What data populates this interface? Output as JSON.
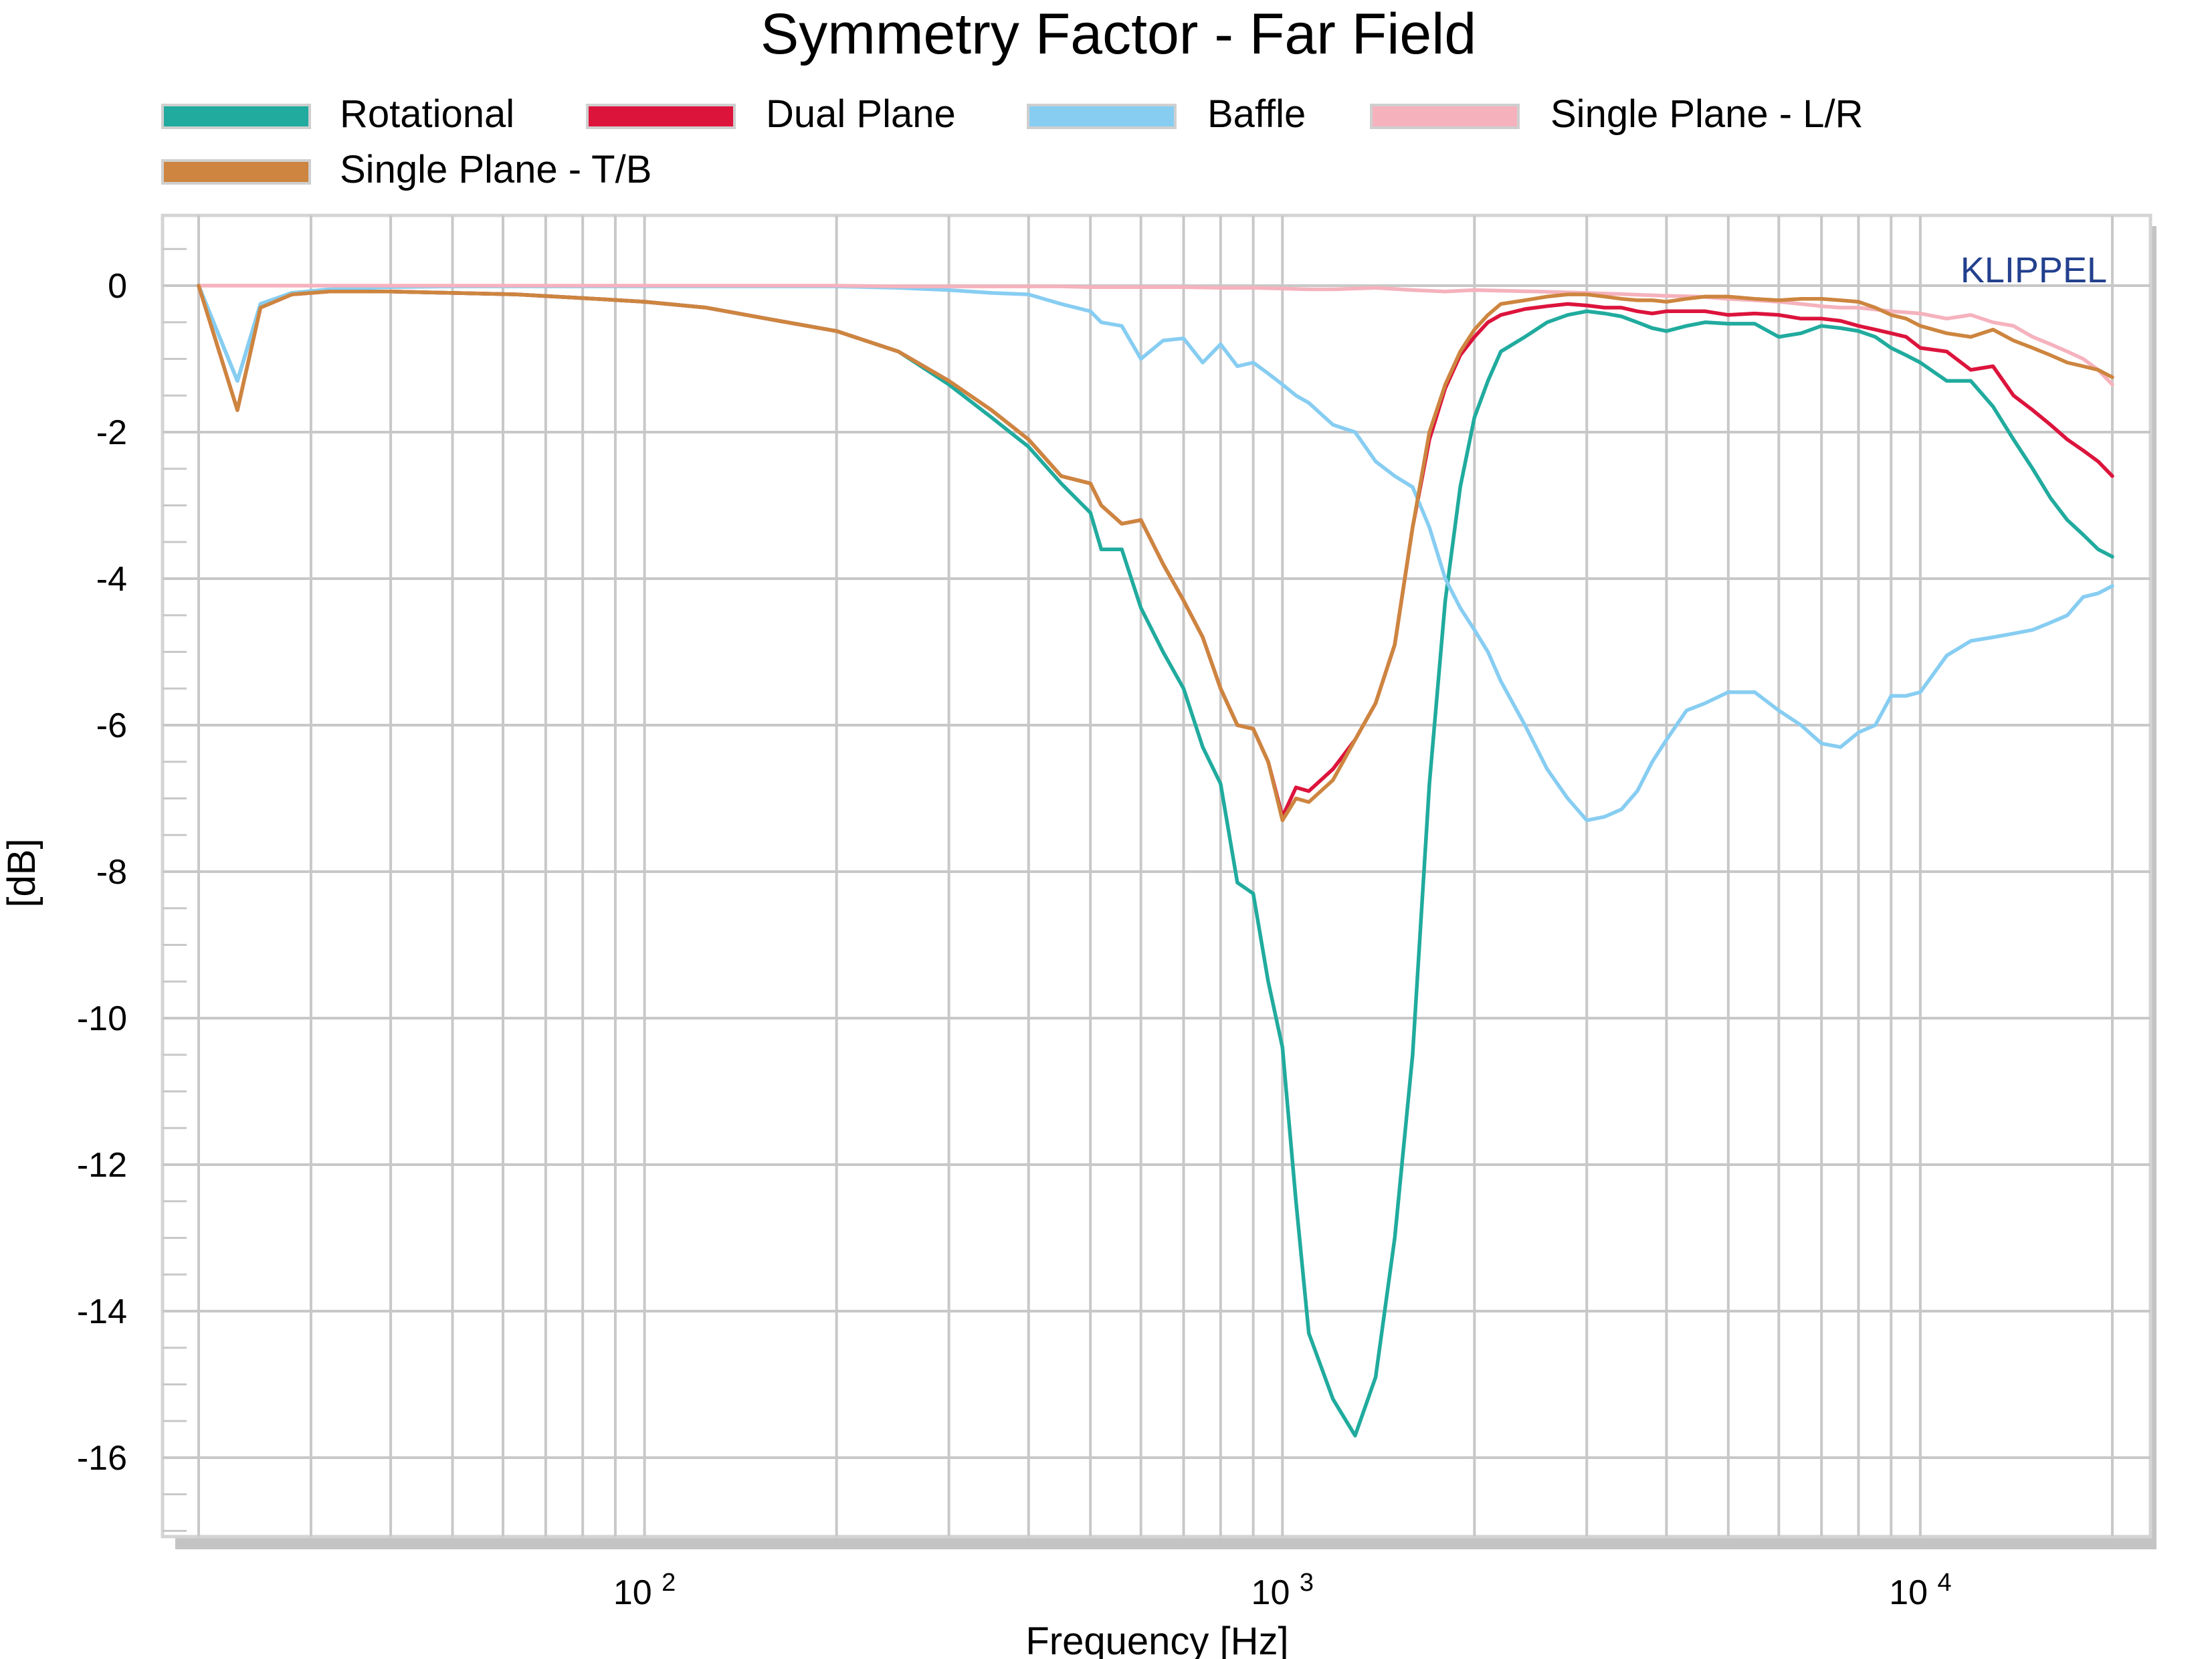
{
  "chart_data": {
    "type": "line",
    "title": "Symmetry Factor - Far Field",
    "xlabel": "Frequency [Hz]",
    "ylabel": "[dB]",
    "watermark": "KLIPPEL",
    "x_scale": "log",
    "xlim": [
      20,
      20000
    ],
    "ylim": [
      -17,
      1
    ],
    "x_ticks": [
      {
        "value": 100,
        "base": "10",
        "exp": "2"
      },
      {
        "value": 1000,
        "base": "10",
        "exp": "3"
      },
      {
        "value": 10000,
        "base": "10",
        "exp": "4"
      }
    ],
    "y_ticks": [
      0,
      -2,
      -4,
      -6,
      -8,
      -10,
      -12,
      -14,
      -16
    ],
    "y_tick_labels": [
      "0",
      "-2",
      "-4",
      "-6",
      "-8",
      "-10",
      "-12",
      "-14",
      "-16"
    ],
    "grid": true,
    "legend_position": "top",
    "series": [
      {
        "name": "Rotational",
        "color": "#20ab9e",
        "x": [
          20,
          23,
          25,
          28,
          32,
          40,
          50,
          63,
          80,
          100,
          125,
          160,
          200,
          250,
          300,
          350,
          400,
          450,
          500,
          520,
          560,
          600,
          650,
          700,
          750,
          800,
          850,
          900,
          950,
          1000,
          1050,
          1100,
          1200,
          1300,
          1400,
          1500,
          1600,
          1700,
          1800,
          1900,
          2000,
          2100,
          2200,
          2400,
          2600,
          2800,
          3000,
          3200,
          3400,
          3600,
          3800,
          4000,
          4300,
          4600,
          5000,
          5500,
          6000,
          6500,
          7000,
          7500,
          8000,
          8500,
          9000,
          9500,
          10000,
          11000,
          12000,
          13000,
          14000,
          15000,
          16000,
          17000,
          18000,
          19000,
          20000
        ],
        "y": [
          0,
          -1.3,
          -0.25,
          -0.1,
          -0.08,
          -0.08,
          -0.1,
          -0.12,
          -0.17,
          -0.22,
          -0.3,
          -0.47,
          -0.62,
          -0.9,
          -1.35,
          -1.8,
          -2.2,
          -2.7,
          -3.1,
          -3.6,
          -3.6,
          -4.4,
          -5.0,
          -5.5,
          -6.3,
          -6.8,
          -8.15,
          -8.3,
          -9.5,
          -10.4,
          -12.5,
          -14.3,
          -15.2,
          -15.7,
          -14.9,
          -13.0,
          -10.5,
          -6.8,
          -4.3,
          -2.75,
          -1.8,
          -1.3,
          -0.9,
          -0.7,
          -0.5,
          -0.4,
          -0.35,
          -0.38,
          -0.42,
          -0.5,
          -0.58,
          -0.62,
          -0.55,
          -0.5,
          -0.52,
          -0.52,
          -0.7,
          -0.65,
          -0.55,
          -0.58,
          -0.62,
          -0.7,
          -0.85,
          -0.95,
          -1.05,
          -1.3,
          -1.3,
          -1.65,
          -2.1,
          -2.5,
          -2.9,
          -3.2,
          -3.4,
          -3.6,
          -3.7
        ],
        "legend_label": "Rotational"
      },
      {
        "name": "Dual Plane",
        "color": "#dc143c",
        "x": [
          20,
          23,
          25,
          28,
          32,
          40,
          50,
          63,
          80,
          100,
          125,
          160,
          200,
          250,
          300,
          350,
          400,
          450,
          500,
          520,
          560,
          600,
          650,
          700,
          750,
          800,
          850,
          900,
          950,
          1000,
          1050,
          1100,
          1200,
          1300,
          1400,
          1500,
          1600,
          1700,
          1800,
          1900,
          2000,
          2100,
          2200,
          2400,
          2600,
          2800,
          3000,
          3200,
          3400,
          3600,
          3800,
          4000,
          4300,
          4600,
          5000,
          5500,
          6000,
          6500,
          7000,
          7500,
          8000,
          8500,
          9000,
          9500,
          10000,
          11000,
          12000,
          13000,
          14000,
          15000,
          16000,
          17000,
          18000,
          19000,
          20000
        ],
        "y": [
          0,
          -1.7,
          -0.3,
          -0.12,
          -0.08,
          -0.08,
          -0.1,
          -0.12,
          -0.17,
          -0.22,
          -0.3,
          -0.47,
          -0.62,
          -0.9,
          -1.3,
          -1.7,
          -2.1,
          -2.6,
          -2.7,
          -3.0,
          -3.25,
          -3.2,
          -3.8,
          -4.3,
          -4.8,
          -5.5,
          -6.0,
          -6.05,
          -6.5,
          -7.25,
          -6.85,
          -6.9,
          -6.6,
          -6.2,
          -5.7,
          -4.9,
          -3.3,
          -2.1,
          -1.4,
          -0.95,
          -0.7,
          -0.5,
          -0.4,
          -0.32,
          -0.28,
          -0.25,
          -0.27,
          -0.3,
          -0.3,
          -0.35,
          -0.38,
          -0.35,
          -0.35,
          -0.35,
          -0.4,
          -0.38,
          -0.4,
          -0.45,
          -0.45,
          -0.48,
          -0.55,
          -0.6,
          -0.65,
          -0.7,
          -0.85,
          -0.9,
          -1.15,
          -1.1,
          -1.5,
          -1.7,
          -1.9,
          -2.1,
          -2.25,
          -2.4,
          -2.6
        ],
        "legend_label": "Dual Plane"
      },
      {
        "name": "Baffle",
        "color": "#87cdf2",
        "x": [
          20,
          23,
          25,
          28,
          32,
          40,
          50,
          63,
          80,
          100,
          125,
          160,
          200,
          250,
          300,
          350,
          400,
          450,
          500,
          520,
          560,
          600,
          650,
          700,
          750,
          800,
          850,
          900,
          950,
          1000,
          1050,
          1100,
          1200,
          1300,
          1400,
          1500,
          1600,
          1700,
          1800,
          1900,
          2000,
          2100,
          2200,
          2400,
          2600,
          2800,
          3000,
          3200,
          3400,
          3600,
          3800,
          4000,
          4300,
          4600,
          5000,
          5500,
          6000,
          6500,
          7000,
          7500,
          8000,
          8500,
          9000,
          9500,
          10000,
          11000,
          12000,
          13000,
          14000,
          15000,
          16000,
          17000,
          18000,
          19000,
          20000
        ],
        "y": [
          0,
          -1.3,
          -0.25,
          -0.1,
          -0.05,
          -0.02,
          -0.01,
          -0.01,
          -0.01,
          -0.01,
          -0.01,
          -0.01,
          -0.01,
          -0.03,
          -0.06,
          -0.1,
          -0.12,
          -0.25,
          -0.35,
          -0.5,
          -0.55,
          -1.0,
          -0.75,
          -0.72,
          -1.05,
          -0.8,
          -1.1,
          -1.05,
          -1.2,
          -1.35,
          -1.5,
          -1.6,
          -1.9,
          -2.0,
          -2.4,
          -2.6,
          -2.75,
          -3.3,
          -4.0,
          -4.4,
          -4.7,
          -5.0,
          -5.4,
          -6.0,
          -6.6,
          -7.0,
          -7.3,
          -7.25,
          -7.15,
          -6.9,
          -6.5,
          -6.2,
          -5.8,
          -5.7,
          -5.55,
          -5.55,
          -5.8,
          -6.0,
          -6.25,
          -6.3,
          -6.1,
          -6.0,
          -5.6,
          -5.6,
          -5.55,
          -5.05,
          -4.85,
          -4.8,
          -4.75,
          -4.7,
          -4.6,
          -4.5,
          -4.25,
          -4.2,
          -4.1
        ],
        "legend_label": "Baffle"
      },
      {
        "name": "Single Plane - L/R",
        "color": "#f5b2bd",
        "x": [
          20,
          25,
          32,
          40,
          50,
          63,
          80,
          100,
          125,
          160,
          200,
          250,
          300,
          350,
          400,
          450,
          500,
          600,
          700,
          800,
          900,
          1000,
          1100,
          1200,
          1400,
          1600,
          1800,
          2000,
          2500,
          3000,
          3500,
          4000,
          4500,
          5000,
          5500,
          6000,
          6500,
          7000,
          7500,
          8000,
          9000,
          10000,
          11000,
          12000,
          13000,
          14000,
          15000,
          16000,
          17000,
          18000,
          19000,
          20000
        ],
        "y": [
          0,
          0,
          0,
          0,
          0,
          0,
          0,
          0,
          0,
          0,
          0,
          -0.01,
          -0.01,
          -0.01,
          -0.01,
          -0.01,
          -0.02,
          -0.02,
          -0.02,
          -0.03,
          -0.03,
          -0.04,
          -0.05,
          -0.05,
          -0.03,
          -0.06,
          -0.08,
          -0.06,
          -0.08,
          -0.1,
          -0.12,
          -0.14,
          -0.15,
          -0.18,
          -0.2,
          -0.22,
          -0.25,
          -0.28,
          -0.3,
          -0.3,
          -0.35,
          -0.38,
          -0.45,
          -0.4,
          -0.5,
          -0.55,
          -0.7,
          -0.8,
          -0.9,
          -1.0,
          -1.15,
          -1.35
        ],
        "legend_label": "Single Plane - L/R"
      },
      {
        "name": "Single Plane - T/B",
        "color": "#cd853f",
        "x": [
          20,
          23,
          25,
          28,
          32,
          40,
          50,
          63,
          80,
          100,
          125,
          160,
          200,
          250,
          300,
          350,
          400,
          450,
          500,
          520,
          560,
          600,
          650,
          700,
          750,
          800,
          850,
          900,
          950,
          1000,
          1050,
          1100,
          1200,
          1300,
          1400,
          1500,
          1600,
          1700,
          1800,
          1900,
          2000,
          2100,
          2200,
          2400,
          2600,
          2800,
          3000,
          3200,
          3400,
          3600,
          3800,
          4000,
          4300,
          4600,
          5000,
          5500,
          6000,
          6500,
          7000,
          7500,
          8000,
          8500,
          9000,
          9500,
          10000,
          11000,
          12000,
          13000,
          14000,
          15000,
          16000,
          17000,
          18000,
          19000,
          20000
        ],
        "y": [
          0,
          -1.7,
          -0.3,
          -0.12,
          -0.08,
          -0.08,
          -0.1,
          -0.12,
          -0.17,
          -0.22,
          -0.3,
          -0.47,
          -0.62,
          -0.9,
          -1.3,
          -1.7,
          -2.1,
          -2.6,
          -2.7,
          -3.0,
          -3.25,
          -3.2,
          -3.8,
          -4.3,
          -4.8,
          -5.5,
          -6.0,
          -6.05,
          -6.5,
          -7.3,
          -7.0,
          -7.05,
          -6.75,
          -6.2,
          -5.7,
          -4.9,
          -3.3,
          -2.0,
          -1.35,
          -0.9,
          -0.6,
          -0.4,
          -0.25,
          -0.2,
          -0.15,
          -0.12,
          -0.12,
          -0.15,
          -0.18,
          -0.2,
          -0.2,
          -0.22,
          -0.18,
          -0.15,
          -0.15,
          -0.18,
          -0.2,
          -0.18,
          -0.18,
          -0.2,
          -0.22,
          -0.3,
          -0.4,
          -0.45,
          -0.55,
          -0.65,
          -0.7,
          -0.6,
          -0.75,
          -0.85,
          -0.95,
          -1.05,
          -1.1,
          -1.15,
          -1.25
        ],
        "legend_label": "Single Plane - T/B"
      }
    ]
  }
}
